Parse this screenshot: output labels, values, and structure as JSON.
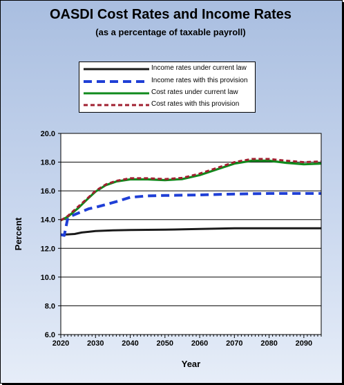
{
  "chart_data": {
    "type": "line",
    "title": "OASDI Cost Rates and Income Rates",
    "subtitle": "(as a percentage of taxable payroll)",
    "xlabel": "Year",
    "ylabel": "Percent",
    "xlim": [
      2020,
      2095
    ],
    "ylim": [
      6.0,
      20.0
    ],
    "x_ticks": [
      2020,
      2030,
      2040,
      2050,
      2060,
      2070,
      2080,
      2090
    ],
    "y_ticks": [
      "6.0",
      "8.0",
      "10.0",
      "12.0",
      "14.0",
      "16.0",
      "18.0",
      "20.0"
    ],
    "grid": "horizontal",
    "legend_position": "top-center",
    "series": [
      {
        "name": "Income rates under current law",
        "color": "#1a1a1a",
        "style": "solid",
        "x": [
          2020,
          2022,
          2024,
          2026,
          2028,
          2030,
          2035,
          2040,
          2050,
          2060,
          2070,
          2080,
          2090,
          2095
        ],
        "values": [
          12.95,
          12.97,
          13.0,
          13.1,
          13.15,
          13.2,
          13.25,
          13.28,
          13.3,
          13.35,
          13.4,
          13.4,
          13.4,
          13.4
        ]
      },
      {
        "name": "Income rates with this provision",
        "color": "#1f3fd6",
        "style": "dashed",
        "x": [
          2020,
          2021,
          2022,
          2023,
          2025,
          2028,
          2030,
          2033,
          2036,
          2040,
          2045,
          2050,
          2060,
          2070,
          2080,
          2090,
          2095
        ],
        "values": [
          12.95,
          12.9,
          14.1,
          14.25,
          14.45,
          14.75,
          14.85,
          15.05,
          15.25,
          15.55,
          15.65,
          15.68,
          15.72,
          15.78,
          15.82,
          15.82,
          15.82
        ]
      },
      {
        "name": "Cost rates under current law",
        "color": "#0f8a1c",
        "style": "solid",
        "x": [
          2020,
          2022,
          2025,
          2028,
          2030,
          2033,
          2036,
          2040,
          2045,
          2050,
          2055,
          2060,
          2065,
          2070,
          2075,
          2080,
          2085,
          2090,
          2095
        ],
        "values": [
          13.95,
          14.2,
          14.8,
          15.5,
          15.95,
          16.4,
          16.65,
          16.8,
          16.8,
          16.75,
          16.82,
          17.1,
          17.5,
          17.9,
          18.1,
          18.1,
          17.95,
          17.85,
          17.9
        ]
      },
      {
        "name": "Cost rates with this provision",
        "color": "#a02030",
        "style": "dashed",
        "x": [
          2020,
          2022,
          2025,
          2028,
          2030,
          2033,
          2036,
          2040,
          2045,
          2050,
          2055,
          2060,
          2065,
          2070,
          2075,
          2080,
          2085,
          2090,
          2095
        ],
        "values": [
          13.95,
          14.25,
          14.9,
          15.55,
          16.0,
          16.45,
          16.7,
          16.88,
          16.88,
          16.82,
          16.9,
          17.2,
          17.6,
          18.0,
          18.22,
          18.22,
          18.1,
          18.0,
          18.05
        ]
      }
    ]
  }
}
